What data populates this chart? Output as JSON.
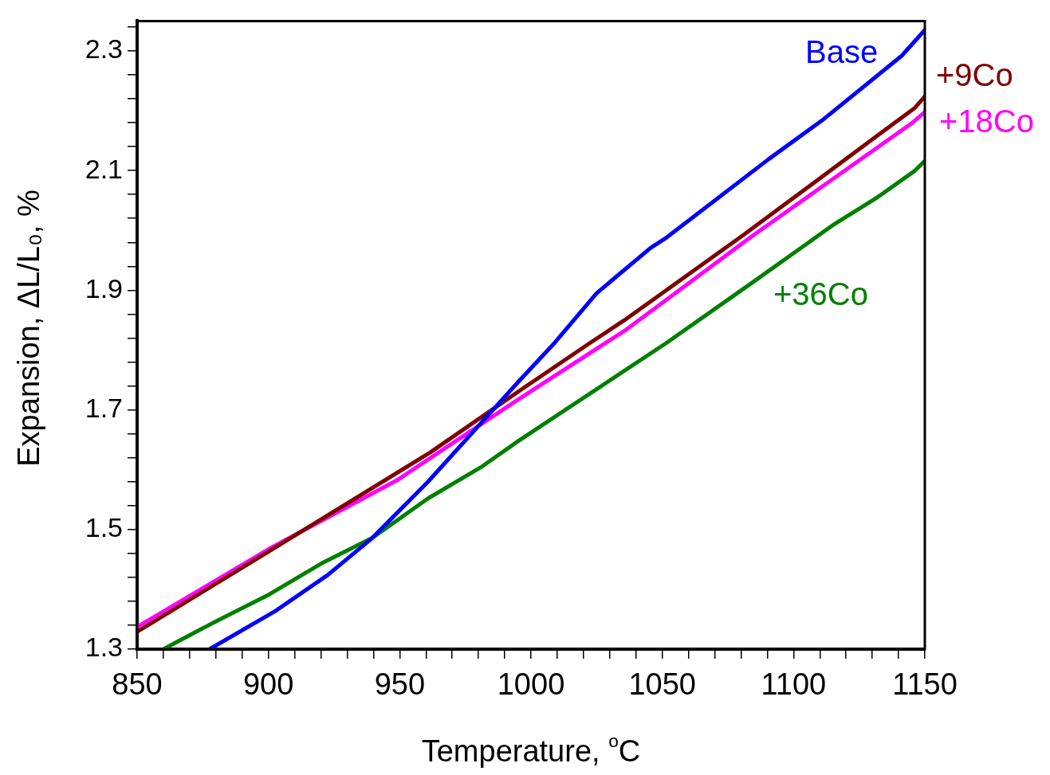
{
  "chart_data": {
    "type": "line",
    "xlabel": "Temperature, $^{o}$C",
    "ylabel": "Expansion, ΔL/L₀, %",
    "xlim": [
      850,
      1150
    ],
    "ylim": [
      1.3,
      2.35
    ],
    "xticks": [
      850,
      {
        "value": 860,
        "label": null
      },
      {
        "value": 870,
        "label": null
      },
      {
        "value": 880,
        "label": null
      },
      {
        "value": 890,
        "label": null
      },
      900,
      {
        "value": 910,
        "label": null
      },
      {
        "value": 920,
        "label": null
      },
      {
        "value": 930,
        "label": null
      },
      {
        "value": 940,
        "label": null
      },
      950,
      {
        "value": 960,
        "label": null
      },
      {
        "value": 970,
        "label": null
      },
      {
        "value": 980,
        "label": null
      },
      {
        "value": 990,
        "label": null
      },
      1000,
      {
        "value": 1010,
        "label": null
      },
      {
        "value": 1020,
        "label": null
      },
      {
        "value": 1030,
        "label": null
      },
      {
        "value": 1040,
        "label": null
      },
      1050,
      {
        "value": 1060,
        "label": null
      },
      {
        "value": 1070,
        "label": null
      },
      {
        "value": 1080,
        "label": null
      },
      {
        "value": 1090,
        "label": null
      },
      1100,
      {
        "value": 1110,
        "label": null
      },
      {
        "value": 1120,
        "label": null
      },
      {
        "value": 1130,
        "label": null
      },
      {
        "value": 1140,
        "label": null
      },
      1150
    ],
    "yticks": [
      1.3,
      {
        "value": 1.34,
        "label": null
      },
      {
        "value": 1.38,
        "label": null
      },
      {
        "value": 1.42,
        "label": null
      },
      {
        "value": 1.46,
        "label": null
      },
      1.5,
      {
        "value": 1.54,
        "label": null
      },
      {
        "value": 1.58,
        "label": null
      },
      {
        "value": 1.62,
        "label": null
      },
      {
        "value": 1.66,
        "label": null
      },
      1.7,
      {
        "value": 1.74,
        "label": null
      },
      {
        "value": 1.78,
        "label": null
      },
      {
        "value": 1.82,
        "label": null
      },
      {
        "value": 1.86,
        "label": null
      },
      1.9,
      {
        "value": 1.94,
        "label": null
      },
      {
        "value": 1.98,
        "label": null
      },
      {
        "value": 2.02,
        "label": null
      },
      {
        "value": 2.06,
        "label": null
      },
      2.1,
      {
        "value": 2.14,
        "label": null
      },
      {
        "value": 2.18,
        "label": null
      },
      {
        "value": 2.22,
        "label": null
      },
      {
        "value": 2.26,
        "label": null
      },
      2.3,
      {
        "value": 2.34,
        "label": null
      }
    ],
    "grid": false,
    "legend": false,
    "marker": "none",
    "line_style": "solid",
    "series": [
      {
        "name": "Base",
        "color": "#0000ff",
        "x": [
          877.6,
          902.4,
          922.6,
          939.6,
          960.8,
          995,
          1009,
          1025,
          1045.6,
          1051.6,
          1090.5,
          1110.9,
          1141.2,
          1150
        ],
        "values": [
          1.3,
          1.363,
          1.424,
          1.486,
          1.58,
          1.746,
          1.812,
          1.895,
          1.971,
          1.988,
          2.119,
          2.184,
          2.292,
          2.335
        ]
      },
      {
        "name": "+9Co",
        "color": "#800000",
        "x": [
          850,
          900,
          961.7,
          995,
          1022.5,
          1035.6,
          1080.5,
          1130.9,
          1146,
          1150
        ],
        "values": [
          1.329,
          1.463,
          1.629,
          1.73,
          1.812,
          1.85,
          1.991,
          2.155,
          2.204,
          2.224
        ]
      },
      {
        "name": "+18Co",
        "color": "#ff00ff",
        "x": [
          850,
          900,
          949.6,
          995,
          1028.5,
          1035.6,
          1084.4,
          1145,
          1150
        ],
        "values": [
          1.337,
          1.467,
          1.584,
          1.717,
          1.812,
          1.832,
          1.991,
          2.179,
          2.198
        ]
      },
      {
        "name": "+36Co",
        "color": "#008000",
        "x": [
          860,
          879.8,
          900.1,
          920.1,
          939.6,
          960.8,
          980.9,
          995.2,
          1051.6,
          1085,
          1115.7,
          1131.5,
          1146,
          1150
        ],
        "values": [
          1.3,
          1.346,
          1.391,
          1.443,
          1.486,
          1.552,
          1.604,
          1.648,
          1.812,
          1.915,
          2.011,
          2.054,
          2.099,
          2.116
        ]
      }
    ]
  }
}
